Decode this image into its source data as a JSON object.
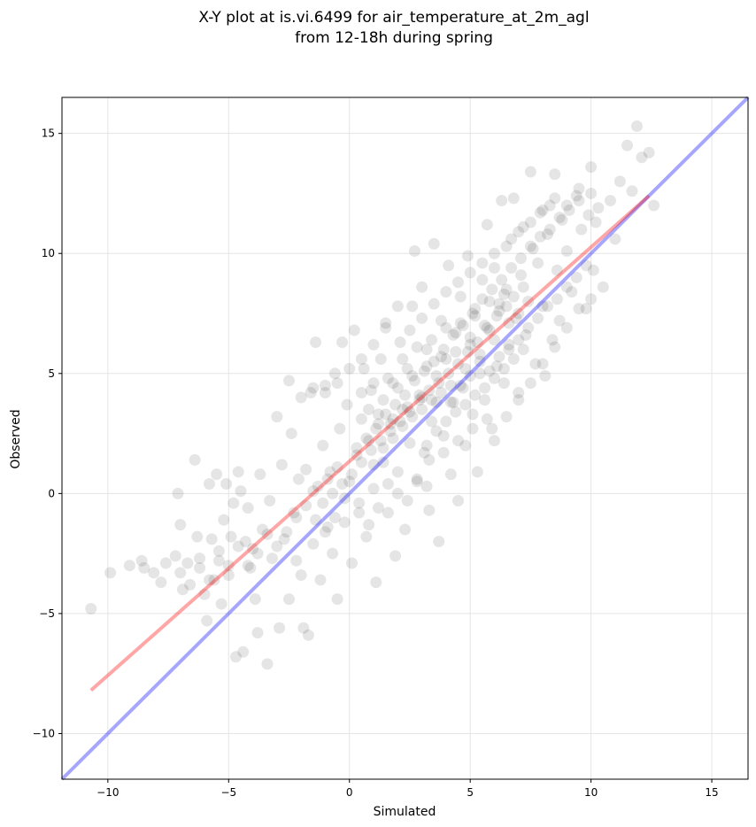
{
  "chart_data": {
    "type": "scatter",
    "title_line1": "X-Y plot at is.vi.6499 for air_temperature_at_2m_agl",
    "title_line2": "from 12-18h during spring",
    "xlabel": "Simulated",
    "ylabel": "Observed",
    "xlim": [
      -11.9,
      16.5
    ],
    "ylim": [
      -11.9,
      16.5
    ],
    "xticks": [
      -10,
      -5,
      0,
      5,
      10,
      15
    ],
    "yticks": [
      -10,
      -5,
      0,
      5,
      10,
      15
    ],
    "xtick_labels": [
      "−10",
      "−5",
      "0",
      "5",
      "10",
      "15"
    ],
    "ytick_labels": [
      "−10",
      "−5",
      "0",
      "5",
      "10",
      "15"
    ],
    "grid": true,
    "colors": {
      "points": "#000000",
      "regression": "#ff0000",
      "identity": "#0000ff"
    },
    "regression_line": {
      "x": [
        -10.7,
        12.4
      ],
      "y": [
        -8.2,
        12.4
      ]
    },
    "identity_line": {
      "x": [
        -11.9,
        16.5
      ],
      "y": [
        -11.9,
        16.5
      ]
    },
    "points": [
      [
        -10.7,
        -4.8
      ],
      [
        -9.9,
        -3.3
      ],
      [
        -9.1,
        -3.0
      ],
      [
        -8.6,
        -2.8
      ],
      [
        -8.5,
        -3.1
      ],
      [
        -8.1,
        -3.3
      ],
      [
        -7.8,
        -3.7
      ],
      [
        -7.6,
        -2.9
      ],
      [
        -7.2,
        -2.6
      ],
      [
        -7.1,
        0.0
      ],
      [
        -7.0,
        -1.3
      ],
      [
        -6.9,
        -4.0
      ],
      [
        -6.7,
        -2.9
      ],
      [
        -6.4,
        1.4
      ],
      [
        -6.3,
        -1.8
      ],
      [
        -6.2,
        -2.7
      ],
      [
        -6.0,
        -4.2
      ],
      [
        -5.9,
        -5.3
      ],
      [
        -5.8,
        0.4
      ],
      [
        -5.7,
        -1.9
      ],
      [
        -5.6,
        -3.6
      ],
      [
        -5.5,
        0.8
      ],
      [
        -5.4,
        -2.4
      ],
      [
        -5.3,
        -4.6
      ],
      [
        -5.2,
        -1.1
      ],
      [
        -5.1,
        0.4
      ],
      [
        -5.0,
        -3.0
      ],
      [
        -4.9,
        -1.8
      ],
      [
        -4.8,
        -0.4
      ],
      [
        -4.7,
        -6.8
      ],
      [
        -4.6,
        0.9
      ],
      [
        -4.5,
        0.1
      ],
      [
        -4.4,
        -6.6
      ],
      [
        -4.3,
        -2.0
      ],
      [
        -4.2,
        -0.6
      ],
      [
        -4.1,
        -3.1
      ],
      [
        -4.0,
        -2.3
      ],
      [
        -3.9,
        -4.4
      ],
      [
        -3.8,
        -5.8
      ],
      [
        -3.7,
        0.8
      ],
      [
        -3.6,
        -1.5
      ],
      [
        -3.4,
        -7.1
      ],
      [
        -3.3,
        -0.3
      ],
      [
        -3.2,
        -2.7
      ],
      [
        -3.0,
        3.2
      ],
      [
        -2.9,
        -5.6
      ],
      [
        -2.8,
        1.2
      ],
      [
        -2.7,
        -1.9
      ],
      [
        -2.5,
        -4.4
      ],
      [
        -2.4,
        2.5
      ],
      [
        -2.3,
        -0.8
      ],
      [
        -2.2,
        -2.8
      ],
      [
        -2.1,
        0.6
      ],
      [
        -2.0,
        -3.4
      ],
      [
        -1.9,
        -5.6
      ],
      [
        -1.8,
        1.0
      ],
      [
        -1.7,
        -5.9
      ],
      [
        -1.6,
        4.2
      ],
      [
        -1.5,
        -2.1
      ],
      [
        -1.4,
        6.3
      ],
      [
        -1.3,
        0.3
      ],
      [
        -1.2,
        -3.6
      ],
      [
        -1.1,
        2.0
      ],
      [
        -1.0,
        4.5
      ],
      [
        -0.9,
        -1.4
      ],
      [
        -0.8,
        0.9
      ],
      [
        -0.7,
        -2.5
      ],
      [
        -0.6,
        5.0
      ],
      [
        -0.5,
        -4.4
      ],
      [
        -0.4,
        2.7
      ],
      [
        -0.3,
        6.3
      ],
      [
        -0.2,
        -1.2
      ],
      [
        -0.1,
        3.7
      ],
      [
        0.0,
        0.5
      ],
      [
        0.1,
        -2.9
      ],
      [
        0.2,
        6.8
      ],
      [
        0.3,
        1.9
      ],
      [
        0.4,
        -0.4
      ],
      [
        0.5,
        3.1
      ],
      [
        0.6,
        5.2
      ],
      [
        0.7,
        -1.8
      ],
      [
        0.8,
        2.2
      ],
      [
        0.9,
        4.3
      ],
      [
        1.0,
        0.2
      ],
      [
        1.1,
        -3.7
      ],
      [
        1.2,
        3.3
      ],
      [
        1.3,
        5.6
      ],
      [
        1.4,
        1.3
      ],
      [
        1.5,
        7.1
      ],
      [
        1.6,
        -0.8
      ],
      [
        1.7,
        2.9
      ],
      [
        1.8,
        4.6
      ],
      [
        1.9,
        -2.6
      ],
      [
        2.0,
        0.9
      ],
      [
        2.1,
        6.3
      ],
      [
        2.2,
        3.5
      ],
      [
        2.3,
        -1.5
      ],
      [
        2.4,
        5.2
      ],
      [
        2.5,
        2.1
      ],
      [
        2.6,
        7.8
      ],
      [
        2.7,
        10.1
      ],
      [
        2.8,
        0.5
      ],
      [
        2.9,
        4.1
      ],
      [
        3.0,
        8.6
      ],
      [
        3.1,
        1.7
      ],
      [
        3.2,
        6.0
      ],
      [
        3.3,
        -0.7
      ],
      [
        3.4,
        3.0
      ],
      [
        3.5,
        10.4
      ],
      [
        3.6,
        4.9
      ],
      [
        3.7,
        -2.0
      ],
      [
        3.8,
        7.2
      ],
      [
        3.9,
        2.4
      ],
      [
        4.0,
        5.6
      ],
      [
        4.1,
        9.5
      ],
      [
        4.2,
        0.8
      ],
      [
        4.3,
        3.8
      ],
      [
        4.4,
        6.7
      ],
      [
        4.5,
        -0.3
      ],
      [
        4.6,
        8.2
      ],
      [
        4.7,
        4.4
      ],
      [
        4.8,
        2.0
      ],
      [
        4.9,
        9.9
      ],
      [
        5.0,
        6.2
      ],
      [
        5.1,
        3.3
      ],
      [
        5.2,
        7.7
      ],
      [
        5.3,
        0.9
      ],
      [
        5.4,
        5.0
      ],
      [
        5.5,
        8.9
      ],
      [
        5.6,
        3.9
      ],
      [
        5.7,
        11.2
      ],
      [
        5.8,
        6.8
      ],
      [
        5.9,
        2.7
      ],
      [
        6.0,
        9.4
      ],
      [
        6.1,
        5.3
      ],
      [
        6.2,
        7.9
      ],
      [
        6.3,
        12.2
      ],
      [
        6.4,
        4.6
      ],
      [
        6.5,
        8.5
      ],
      [
        6.6,
        6.2
      ],
      [
        6.7,
        10.6
      ],
      [
        6.8,
        12.3
      ],
      [
        6.9,
        7.3
      ],
      [
        7.0,
        4.2
      ],
      [
        7.1,
        9.1
      ],
      [
        7.2,
        11.1
      ],
      [
        7.3,
        6.6
      ],
      [
        7.4,
        8.0
      ],
      [
        7.5,
        13.4
      ],
      [
        7.6,
        10.2
      ],
      [
        7.7,
        5.4
      ],
      [
        7.8,
        9.6
      ],
      [
        7.9,
        11.7
      ],
      [
        8.0,
        7.8
      ],
      [
        8.1,
        4.9
      ],
      [
        8.2,
        10.8
      ],
      [
        8.3,
        12.0
      ],
      [
        8.4,
        6.4
      ],
      [
        8.5,
        13.3
      ],
      [
        8.6,
        9.3
      ],
      [
        8.7,
        7.2
      ],
      [
        8.8,
        11.4
      ],
      [
        9.0,
        10.1
      ],
      [
        9.2,
        8.4
      ],
      [
        9.4,
        12.4
      ],
      [
        9.6,
        11.0
      ],
      [
        9.8,
        7.7
      ],
      [
        10.0,
        13.6
      ],
      [
        10.1,
        9.3
      ],
      [
        10.3,
        11.9
      ],
      [
        10.5,
        8.6
      ],
      [
        10.8,
        12.2
      ],
      [
        11.0,
        10.6
      ],
      [
        11.2,
        13.0
      ],
      [
        11.5,
        14.5
      ],
      [
        11.7,
        12.6
      ],
      [
        11.9,
        15.3
      ],
      [
        12.1,
        14.0
      ],
      [
        12.4,
        14.2
      ],
      [
        12.6,
        12.0
      ],
      [
        0.5,
        4.2
      ],
      [
        0.8,
        3.5
      ],
      [
        1.0,
        4.6
      ],
      [
        1.2,
        2.9
      ],
      [
        1.4,
        3.9
      ],
      [
        1.6,
        4.8
      ],
      [
        1.8,
        3.1
      ],
      [
        2.0,
        4.4
      ],
      [
        2.2,
        5.6
      ],
      [
        2.4,
        3.6
      ],
      [
        2.6,
        4.9
      ],
      [
        2.8,
        6.1
      ],
      [
        3.0,
        4.0
      ],
      [
        3.2,
        5.3
      ],
      [
        3.4,
        6.4
      ],
      [
        3.6,
        3.8
      ],
      [
        3.8,
        5.7
      ],
      [
        4.0,
        6.9
      ],
      [
        4.2,
        4.5
      ],
      [
        4.4,
        5.9
      ],
      [
        4.6,
        7.1
      ],
      [
        4.8,
        5.2
      ],
      [
        5.0,
        6.5
      ],
      [
        5.2,
        7.4
      ],
      [
        5.4,
        5.8
      ],
      [
        5.6,
        7.0
      ],
      [
        5.8,
        8.0
      ],
      [
        6.0,
        6.4
      ],
      [
        6.2,
        7.6
      ],
      [
        6.4,
        8.3
      ],
      [
        6.6,
        7.1
      ],
      [
        6.8,
        8.2
      ],
      [
        7.0,
        7.5
      ],
      [
        7.2,
        8.6
      ],
      [
        6.5,
        7.8
      ],
      [
        6.1,
        7.4
      ],
      [
        5.7,
        6.9
      ],
      [
        5.3,
        6.3
      ],
      [
        4.9,
        5.9
      ],
      [
        4.5,
        5.4
      ],
      [
        4.1,
        5.0
      ],
      [
        3.7,
        4.6
      ],
      [
        3.3,
        4.3
      ],
      [
        2.9,
        3.9
      ],
      [
        2.5,
        3.4
      ],
      [
        2.1,
        3.0
      ],
      [
        1.7,
        2.6
      ],
      [
        1.3,
        2.2
      ],
      [
        0.9,
        1.8
      ],
      [
        0.5,
        1.3
      ],
      [
        0.1,
        0.8
      ],
      [
        -0.3,
        0.4
      ],
      [
        -0.7,
        0.0
      ],
      [
        -1.1,
        -0.4
      ],
      [
        -1.5,
        0.1
      ],
      [
        -0.9,
        0.6
      ],
      [
        -0.5,
        1.1
      ],
      [
        0.3,
        1.6
      ],
      [
        0.7,
        2.3
      ],
      [
        1.1,
        2.7
      ],
      [
        1.5,
        3.3
      ],
      [
        1.9,
        3.7
      ],
      [
        2.3,
        4.1
      ],
      [
        2.7,
        4.7
      ],
      [
        3.1,
        5.1
      ],
      [
        3.5,
        5.5
      ],
      [
        3.9,
        6.0
      ],
      [
        4.3,
        6.6
      ],
      [
        4.7,
        7.0
      ],
      [
        5.1,
        7.5
      ],
      [
        5.5,
        8.1
      ],
      [
        5.9,
        8.5
      ],
      [
        6.3,
        8.9
      ],
      [
        6.7,
        9.4
      ],
      [
        7.1,
        9.8
      ],
      [
        7.5,
        10.3
      ],
      [
        7.9,
        10.7
      ],
      [
        8.3,
        11.0
      ],
      [
        8.7,
        11.5
      ],
      [
        9.1,
        11.8
      ],
      [
        9.5,
        12.2
      ],
      [
        9.9,
        11.6
      ],
      [
        10.2,
        11.3
      ],
      [
        1.0,
        1.2
      ],
      [
        1.4,
        1.9
      ],
      [
        1.8,
        2.3
      ],
      [
        2.2,
        2.8
      ],
      [
        2.6,
        3.2
      ],
      [
        3.0,
        3.5
      ],
      [
        3.4,
        3.9
      ],
      [
        3.8,
        4.2
      ],
      [
        4.2,
        3.8
      ],
      [
        4.6,
        4.5
      ],
      [
        5.0,
        4.9
      ],
      [
        5.4,
        5.5
      ],
      [
        5.8,
        5.1
      ],
      [
        6.2,
        5.7
      ],
      [
        6.6,
        6.0
      ],
      [
        7.0,
        6.4
      ],
      [
        7.4,
        6.9
      ],
      [
        7.8,
        7.3
      ],
      [
        8.2,
        7.8
      ],
      [
        8.6,
        8.1
      ],
      [
        9.0,
        8.6
      ],
      [
        9.4,
        9.0
      ],
      [
        9.8,
        9.5
      ],
      [
        3.2,
        2.0
      ],
      [
        3.6,
        2.6
      ],
      [
        4.0,
        3.0
      ],
      [
        4.4,
        3.4
      ],
      [
        4.8,
        3.7
      ],
      [
        5.2,
        4.1
      ],
      [
        5.6,
        4.4
      ],
      [
        6.0,
        4.8
      ],
      [
        6.4,
        5.2
      ],
      [
        6.8,
        5.6
      ],
      [
        7.2,
        6.0
      ],
      [
        3.3,
        1.4
      ],
      [
        3.9,
        1.7
      ],
      [
        4.5,
        2.2
      ],
      [
        5.1,
        2.7
      ],
      [
        5.7,
        3.1
      ],
      [
        1.6,
        0.4
      ],
      [
        2.0,
        0.0
      ],
      [
        2.4,
        -0.3
      ],
      [
        2.8,
        0.6
      ],
      [
        3.2,
        0.3
      ],
      [
        0.4,
        -0.8
      ],
      [
        0.8,
        -1.3
      ],
      [
        1.2,
        -0.6
      ],
      [
        -0.2,
        -0.2
      ],
      [
        -0.6,
        -1.0
      ],
      [
        -1.0,
        -1.6
      ],
      [
        -1.4,
        -1.1
      ],
      [
        -1.8,
        -0.5
      ],
      [
        -2.2,
        -1.0
      ],
      [
        -2.6,
        -1.6
      ],
      [
        -3.0,
        -2.2
      ],
      [
        -3.4,
        -1.7
      ],
      [
        -3.8,
        -2.5
      ],
      [
        -4.2,
        -3.0
      ],
      [
        -4.6,
        -2.2
      ],
      [
        -5.0,
        -3.4
      ],
      [
        -5.4,
        -2.8
      ],
      [
        -5.8,
        -3.6
      ],
      [
        -6.2,
        -3.1
      ],
      [
        -6.6,
        -3.8
      ],
      [
        -7.0,
        -3.3
      ],
      [
        2.5,
        6.8
      ],
      [
        3.0,
        7.3
      ],
      [
        3.5,
        7.9
      ],
      [
        4.0,
        8.4
      ],
      [
        4.5,
        8.8
      ],
      [
        5.0,
        9.2
      ],
      [
        5.5,
        9.6
      ],
      [
        6.0,
        10.0
      ],
      [
        6.5,
        10.3
      ],
      [
        7.0,
        10.9
      ],
      [
        7.5,
        11.3
      ],
      [
        8.0,
        11.8
      ],
      [
        8.5,
        12.3
      ],
      [
        9.0,
        12.0
      ],
      [
        9.5,
        12.7
      ],
      [
        10.0,
        12.5
      ],
      [
        2.0,
        7.8
      ],
      [
        1.5,
        6.9
      ],
      [
        1.0,
        6.2
      ],
      [
        0.5,
        5.6
      ],
      [
        0.0,
        5.2
      ],
      [
        -0.5,
        4.6
      ],
      [
        -1.0,
        4.2
      ],
      [
        -1.5,
        4.4
      ],
      [
        -2.0,
        4.0
      ],
      [
        -2.5,
        4.7
      ],
      [
        6.0,
        2.2
      ],
      [
        6.5,
        3.2
      ],
      [
        7.0,
        3.9
      ],
      [
        7.5,
        4.6
      ],
      [
        8.0,
        5.4
      ],
      [
        8.5,
        6.1
      ],
      [
        9.0,
        6.9
      ],
      [
        9.5,
        7.7
      ],
      [
        10.0,
        8.1
      ]
    ]
  }
}
